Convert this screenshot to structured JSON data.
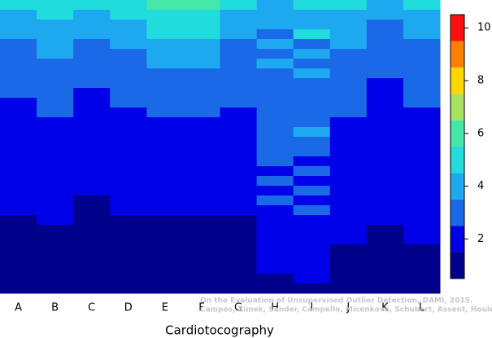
{
  "chart_data": {
    "type": "heatmap",
    "xlabel": "Cardiotocography",
    "categories": [
      "A",
      "B",
      "C",
      "D",
      "E",
      "F",
      "G",
      "H",
      "I",
      "J",
      "K",
      "L"
    ],
    "z": [
      [
        4.8,
        4.8,
        4.5,
        4.9,
        5.5,
        5.5,
        4.6,
        4.2,
        4.5,
        4.7,
        4.3,
        4.5
      ],
      [
        4.2,
        4.5,
        4.0,
        4.6,
        5.4,
        5.3,
        4.3,
        3.9,
        4.2,
        4.4,
        3.8,
        4.2
      ],
      [
        3.8,
        4.2,
        3.7,
        4.3,
        5.0,
        4.9,
        3.9,
        3.6,
        3.8,
        4.0,
        3.4,
        3.9
      ],
      [
        3.5,
        3.9,
        3.5,
        3.9,
        4.6,
        4.5,
        3.6,
        3.3,
        4.5,
        3.7,
        3.1,
        3.6
      ],
      [
        3.3,
        3.7,
        3.2,
        3.7,
        4.3,
        4.2,
        3.4,
        4.2,
        3.4,
        3.5,
        2.9,
        3.4
      ],
      [
        3.1,
        3.5,
        3.0,
        3.4,
        4.0,
        3.9,
        3.2,
        3.1,
        3.8,
        3.3,
        2.7,
        3.2
      ],
      [
        2.9,
        3.3,
        2.8,
        3.2,
        3.6,
        3.6,
        3.0,
        3.6,
        3.2,
        3.1,
        2.6,
        3.0
      ],
      [
        2.8,
        3.1,
        2.6,
        3.0,
        3.3,
        3.3,
        2.8,
        2.9,
        3.5,
        2.9,
        2.5,
        2.9
      ],
      [
        2.6,
        2.9,
        2.5,
        2.8,
        3.1,
        3.0,
        2.7,
        3.3,
        2.8,
        2.8,
        2.4,
        2.7
      ],
      [
        2.5,
        2.7,
        2.4,
        2.6,
        2.9,
        2.8,
        2.6,
        2.8,
        3.2,
        2.7,
        2.3,
        2.6
      ],
      [
        2.4,
        2.6,
        2.3,
        2.5,
        2.7,
        2.6,
        2.5,
        3.1,
        2.7,
        2.6,
        2.2,
        2.5
      ],
      [
        2.3,
        2.5,
        2.2,
        2.4,
        2.5,
        2.5,
        2.4,
        2.7,
        3.4,
        2.5,
        2.2,
        2.4
      ],
      [
        2.2,
        2.4,
        2.1,
        2.3,
        2.4,
        2.4,
        2.3,
        3.0,
        2.6,
        2.4,
        2.1,
        2.3
      ],
      [
        2.1,
        2.3,
        2.0,
        2.2,
        2.3,
        2.3,
        2.2,
        2.6,
        3.6,
        2.3,
        2.0,
        2.2
      ],
      [
        2.0,
        2.2,
        2.0,
        2.1,
        2.2,
        2.2,
        2.1,
        2.9,
        2.5,
        2.2,
        2.0,
        2.1
      ],
      [
        1.9,
        2.1,
        1.9,
        2.0,
        2.1,
        2.1,
        2.0,
        2.5,
        3.1,
        2.1,
        1.9,
        2.0
      ],
      [
        1.9,
        2.0,
        1.8,
        2.0,
        2.0,
        2.0,
        2.0,
        2.8,
        2.4,
        2.0,
        1.8,
        2.0
      ],
      [
        1.8,
        1.9,
        1.7,
        1.9,
        1.9,
        1.9,
        1.9,
        2.4,
        2.9,
        1.9,
        1.8,
        1.9
      ],
      [
        1.8,
        1.9,
        1.6,
        1.8,
        1.8,
        1.8,
        1.8,
        2.7,
        2.3,
        1.9,
        1.7,
        1.8
      ],
      [
        1.7,
        1.8,
        1.5,
        1.7,
        1.7,
        1.7,
        1.7,
        2.3,
        2.7,
        1.8,
        1.7,
        1.8
      ],
      [
        1.6,
        1.7,
        1.4,
        1.6,
        1.6,
        1.6,
        1.6,
        2.5,
        2.2,
        1.7,
        1.6,
        1.7
      ],
      [
        1.5,
        1.6,
        1.4,
        1.5,
        1.5,
        1.5,
        1.5,
        2.2,
        2.5,
        1.6,
        1.5,
        1.6
      ],
      [
        1.4,
        1.5,
        1.3,
        1.4,
        1.4,
        1.4,
        1.4,
        2.4,
        2.1,
        1.6,
        1.5,
        1.6
      ],
      [
        1.4,
        1.4,
        1.3,
        1.3,
        1.3,
        1.3,
        1.3,
        2.1,
        2.3,
        1.5,
        1.4,
        1.5
      ],
      [
        1.3,
        1.4,
        1.2,
        1.2,
        1.2,
        1.2,
        1.2,
        2.0,
        2.0,
        1.5,
        1.4,
        1.5
      ],
      [
        1.2,
        1.3,
        1.2,
        1.1,
        1.1,
        1.1,
        1.1,
        1.9,
        2.2,
        1.4,
        1.3,
        1.4
      ],
      [
        1.1,
        1.2,
        1.1,
        1.0,
        1.0,
        1.0,
        1.0,
        1.8,
        1.9,
        1.3,
        1.2,
        1.3
      ],
      [
        1.0,
        1.1,
        1.0,
        1.0,
        1.0,
        1.0,
        1.0,
        1.6,
        1.7,
        1.2,
        1.2,
        1.0
      ],
      [
        1.0,
        1.0,
        1.0,
        0.9,
        0.9,
        0.9,
        0.9,
        1.4,
        1.5,
        1.1,
        1.1,
        1.0
      ],
      [
        0.9,
        0.9,
        0.9,
        0.9,
        0.9,
        0.9,
        0.9,
        1.2,
        1.3,
        1.0,
        1.0,
        0.9
      ]
    ],
    "zlim": [
      0.5,
      10.5
    ],
    "zticks": [
      2,
      4,
      6,
      8,
      10
    ],
    "colors": [
      "#00008b",
      "#0000e8",
      "#1a6ae8",
      "#1ea8f0",
      "#20dcdc",
      "#44e8a8",
      "#a8e060",
      "#ffd700",
      "#ff7f00",
      "#ff1010",
      "#8b0000"
    ],
    "annotations": [
      "On the Evaluation of Unsupervised Outlier Detection, DAMI, 2015.",
      "Campos, Zimek, Sander, Campello, Micenková, Schubert, Assent, Houle"
    ]
  }
}
